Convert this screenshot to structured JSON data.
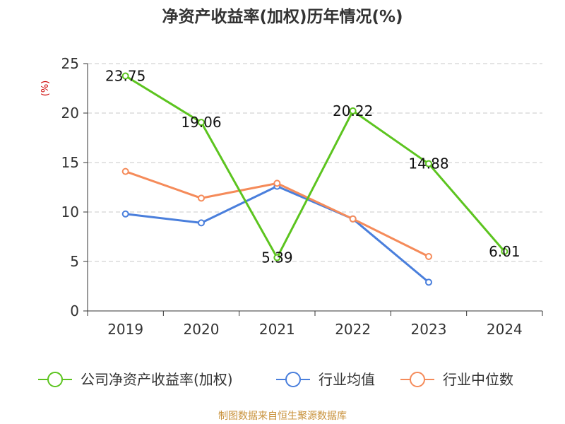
{
  "chart_data": {
    "type": "line",
    "title": "净资产收益率(加权)历年情况(%)",
    "ylabel": "(%)",
    "xlabel": "",
    "categories": [
      "2019",
      "2020",
      "2021",
      "2022",
      "2023",
      "2024"
    ],
    "ylim": [
      0,
      25
    ],
    "yticks": [
      0,
      5,
      10,
      15,
      20,
      25
    ],
    "grid": true,
    "legend_position": "bottom",
    "series": [
      {
        "name": "公司净资产收益率(加权)",
        "color": "#5cc41f",
        "values": [
          23.75,
          19.06,
          5.39,
          20.22,
          14.88,
          6.01
        ],
        "labels": [
          "23.75",
          "19.06",
          "5.39",
          "20.22",
          "14.88",
          "6.01"
        ]
      },
      {
        "name": "行业均值",
        "color": "#4a7fdc",
        "values": [
          9.8,
          8.9,
          12.6,
          9.3,
          2.9,
          null
        ]
      },
      {
        "name": "行业中位数",
        "color": "#f58b5a",
        "values": [
          14.1,
          11.4,
          12.9,
          9.3,
          5.5,
          null
        ]
      }
    ]
  },
  "source": "制图数据来自恒生聚源数据库"
}
